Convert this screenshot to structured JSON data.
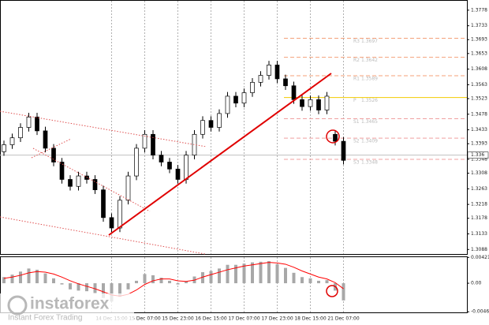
{
  "chart_data": {
    "type": "candlestick",
    "categories": [
      null,
      null,
      null,
      null,
      null,
      null,
      null,
      null,
      null,
      null,
      null,
      null,
      null,
      "14 Dec 15:00",
      null,
      null,
      null,
      "15 Dec 07:00",
      null,
      null,
      null,
      "15 Dec 23:00",
      null,
      null,
      null,
      "16 Dec 15:00",
      null,
      null,
      null,
      "17 Dec 07:00",
      null,
      null,
      null,
      "17 Dec 23:00",
      null,
      null,
      null,
      "18 Dec 15:00",
      null,
      null,
      null,
      "21 Dec 07:00"
    ],
    "open": [
      1.337,
      1.339,
      1.341,
      1.344,
      1.347,
      1.343,
      1.338,
      1.334,
      1.329,
      1.327,
      1.33,
      1.329,
      1.326,
      1.318,
      1.315,
      1.323,
      1.33,
      1.338,
      1.342,
      1.336,
      1.334,
      1.332,
      1.329,
      1.336,
      1.342,
      1.346,
      1.344,
      1.348,
      1.353,
      1.351,
      1.354,
      1.357,
      1.359,
      1.362,
      1.358,
      1.356,
      1.352,
      1.35,
      1.352,
      1.349,
      1.342,
      1.34
    ],
    "high": [
      1.3402,
      1.3422,
      1.3452,
      1.3482,
      1.3482,
      1.3442,
      1.3392,
      1.3352,
      1.3302,
      1.3312,
      1.3312,
      1.3302,
      1.3272,
      1.3192,
      1.3242,
      1.3312,
      1.3392,
      1.3432,
      1.3432,
      1.3372,
      1.3352,
      1.3332,
      1.3372,
      1.3432,
      1.3472,
      1.3472,
      1.3492,
      1.3542,
      1.3542,
      1.3552,
      1.3582,
      1.3602,
      1.3632,
      1.3632,
      1.3592,
      1.3572,
      1.3532,
      1.3532,
      1.3532,
      1.3542,
      1.3432,
      1.3412
    ],
    "low": [
      1.3358,
      1.3378,
      1.3398,
      1.3428,
      1.3418,
      1.3368,
      1.3328,
      1.3278,
      1.3258,
      1.3258,
      1.3278,
      1.3248,
      1.3168,
      1.3138,
      1.3138,
      1.3218,
      1.3288,
      1.3368,
      1.3348,
      1.3328,
      1.3308,
      1.3278,
      1.3278,
      1.3348,
      1.3408,
      1.3428,
      1.3428,
      1.3468,
      1.3498,
      1.3498,
      1.3528,
      1.3558,
      1.3578,
      1.3568,
      1.3548,
      1.3508,
      1.3488,
      1.3488,
      1.3478,
      1.3478,
      1.3388,
      1.3333
    ],
    "close": [
      1.339,
      1.341,
      1.344,
      1.347,
      1.343,
      1.338,
      1.334,
      1.329,
      1.327,
      1.33,
      1.329,
      1.326,
      1.318,
      1.315,
      1.323,
      1.33,
      1.338,
      1.342,
      1.336,
      1.334,
      1.332,
      1.329,
      1.336,
      1.342,
      1.346,
      1.344,
      1.348,
      1.353,
      1.351,
      1.354,
      1.357,
      1.359,
      1.362,
      1.358,
      1.356,
      1.352,
      1.35,
      1.352,
      1.349,
      1.353,
      1.34,
      1.3345
    ],
    "up_color": "#ffffff",
    "down_color": "#000000",
    "ylim": [
      1.3075,
      1.3805
    ],
    "yticks": [
      1.3778,
      1.3733,
      1.3693,
      1.3653,
      1.3608,
      1.3563,
      1.3523,
      1.3478,
      1.3433,
      1.3393,
      1.3348,
      1.3308,
      1.3263,
      1.3218,
      1.3178,
      1.3133,
      1.3088
    ],
    "last_price": 1.336,
    "grid": true,
    "pivots": [
      {
        "name": "R3",
        "value": 1.3697,
        "color": "#f4a07a"
      },
      {
        "name": "R2",
        "value": 1.3642,
        "color": "#f4a07a"
      },
      {
        "name": "R1",
        "value": 1.3589,
        "color": "#f4a07a"
      },
      {
        "name": "P",
        "value": 1.3526,
        "color": "#f2cc00"
      },
      {
        "name": "S1",
        "value": 1.3465,
        "color": "#f0a0a0"
      },
      {
        "name": "S2",
        "value": 1.3409,
        "color": "#f0a0a0"
      },
      {
        "name": "S3",
        "value": 1.3348,
        "color": "#f0a0a0"
      }
    ],
    "indicator": {
      "type": "histogram",
      "values": [
        0.001,
        0.0014,
        0.0019,
        0.0024,
        0.0022,
        0.0016,
        0.0008,
        -0.0002,
        -0.001,
        -0.0012,
        -0.0013,
        -0.0016,
        -0.0024,
        -0.003,
        -0.0022,
        -0.001,
        0.0004,
        0.0015,
        0.0013,
        0.0009,
        0.0004,
        -0.0002,
        0.0003,
        0.0011,
        0.0018,
        0.002,
        0.0024,
        0.003,
        0.003,
        0.0032,
        0.0034,
        0.0035,
        0.0036,
        0.0031,
        0.0025,
        0.0017,
        0.001,
        0.0008,
        0.0004,
        0.0005,
        -0.0012,
        -0.0028
      ],
      "signal": [
        0.0008,
        0.001,
        0.0013,
        0.0017,
        0.0019,
        0.0018,
        0.0015,
        0.001,
        0.0004,
        -0.0001,
        -0.0005,
        -0.0009,
        -0.0014,
        -0.0019,
        -0.0021,
        -0.0018,
        -0.0011,
        -0.0002,
        0.0004,
        0.0007,
        0.0007,
        0.0004,
        0.0003,
        0.0005,
        0.001,
        0.0014,
        0.0018,
        0.0022,
        0.0025,
        0.0028,
        0.003,
        0.0032,
        0.0034,
        0.0033,
        0.0031,
        0.0026,
        0.002,
        0.0015,
        0.001,
        0.0007,
        0.0001,
        -0.0009
      ],
      "color": "#a8a8a8",
      "signal_color": "#ff0000",
      "ylim": [
        -0.00475,
        0.00425
      ],
      "yticks": [
        0.00421,
        {
          "value": 0,
          "label": "0.00"
        },
        -0.00465
      ]
    }
  },
  "watermark": {
    "brand": "instaforex",
    "tagline": "Instant Forex Trading"
  }
}
